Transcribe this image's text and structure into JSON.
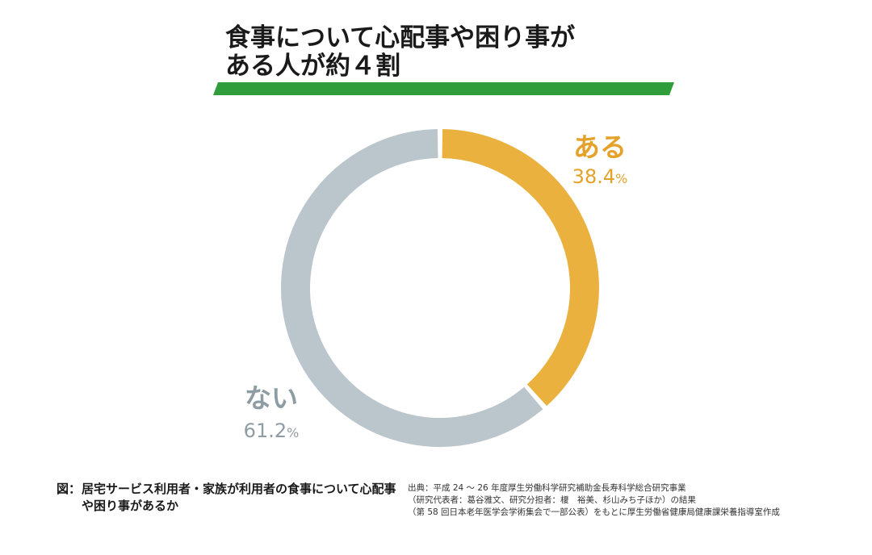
{
  "title": {
    "line1": "食事について心配事や困り事が",
    "line2": "ある人が約４割"
  },
  "colors": {
    "accent_bar": "#2f9e3a",
    "aru": "#eab13f",
    "nai": "#bac6cb",
    "aru_text": "#e5a22a",
    "nai_text": "#8e9ca3"
  },
  "chart_data": {
    "type": "pie",
    "donut": true,
    "slices": [
      {
        "label": "ある",
        "value": 38.4,
        "value_text": "38.4",
        "unit": "%",
        "color": "#eab13f"
      },
      {
        "label": "ない",
        "value": 61.2,
        "value_text": "61.2",
        "unit": "%",
        "color": "#bac6cb"
      }
    ],
    "start_angle": "12 o'clock",
    "direction": "clockwise"
  },
  "caption": {
    "prefix": "図：",
    "text": "居宅サービス利用者・家族が利用者の食事について心配事や困り事があるか"
  },
  "source": {
    "line1": "出典：平成 24 ～ 26 年度厚生労働科学研究補助金長寿科学総合研究事業",
    "line2": "（研究代表者：葛谷雅文、研究分担者：榎　裕美、杉山みち子ほか）の結果",
    "line3": "（第 58 回日本老年医学会学術集会で一部公表）をもとに厚生労働省健康局健康課栄養指導室作成"
  }
}
